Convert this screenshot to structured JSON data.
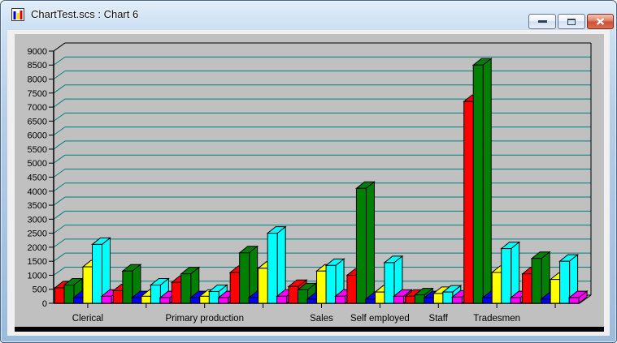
{
  "window": {
    "title": "ChartTest.scs : Chart 6",
    "icon": "bar-chart-app-icon",
    "controls": {
      "minimize": "minimize",
      "maximize": "maximize",
      "close": "close"
    }
  },
  "colors": {
    "panel_background": "#C0C0C0",
    "client_background": "#F0F0F0",
    "gridline": "#008080",
    "axis": "#000000",
    "close_button": "#CE5136",
    "title_text": "#0D0D0D"
  },
  "chart_data": {
    "type": "bar",
    "variant": "3d-clustered",
    "title": "",
    "xlabel": "",
    "ylabel": "",
    "ylim": [
      0,
      9000
    ],
    "ytick_step": 500,
    "yticks": [
      0,
      500,
      1000,
      1500,
      2000,
      2500,
      3000,
      3500,
      4000,
      4500,
      5000,
      5500,
      6000,
      6500,
      7000,
      7500,
      8000,
      8500,
      9000
    ],
    "grid": true,
    "gridline_color": "#008080",
    "background": "#C0C0C0",
    "legend": "none",
    "categories": [
      "Clerical",
      "",
      "Primary production",
      "",
      "Sales",
      "Self employed",
      "Staff",
      "Tradesmen",
      ""
    ],
    "series": [
      {
        "name": "red",
        "color": "#FF0000",
        "values": [
          550,
          450,
          750,
          1100,
          600,
          1000,
          250,
          7200,
          1050
        ]
      },
      {
        "name": "green",
        "color": "#008000",
        "values": [
          650,
          1150,
          1050,
          1800,
          480,
          4100,
          300,
          8500,
          1600
        ]
      },
      {
        "name": "blue",
        "color": "#0000FF",
        "values": [
          200,
          200,
          200,
          200,
          150,
          150,
          200,
          200,
          150
        ]
      },
      {
        "name": "yellow",
        "color": "#FFFF00",
        "values": [
          1300,
          250,
          250,
          1250,
          1150,
          400,
          350,
          1100,
          850
        ]
      },
      {
        "name": "cyan",
        "color": "#00FFFF",
        "values": [
          2100,
          650,
          420,
          2500,
          1350,
          1450,
          400,
          1950,
          1500
        ]
      },
      {
        "name": "magenta",
        "color": "#FF00FF",
        "values": [
          250,
          200,
          200,
          250,
          250,
          250,
          220,
          200,
          200
        ]
      }
    ]
  }
}
